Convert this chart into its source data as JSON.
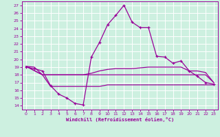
{
  "title": "",
  "xlabel": "Windchill (Refroidissement éolien,°C)",
  "background_color": "#cdf0e0",
  "grid_color": "#ffffff",
  "line_color": "#990099",
  "xlim": [
    -0.5,
    23.5
  ],
  "ylim": [
    13.5,
    27.5
  ],
  "yticks": [
    14,
    15,
    16,
    17,
    18,
    19,
    20,
    21,
    22,
    23,
    24,
    25,
    26,
    27
  ],
  "xticks": [
    0,
    1,
    2,
    3,
    4,
    5,
    6,
    7,
    8,
    9,
    10,
    11,
    12,
    13,
    14,
    15,
    16,
    17,
    18,
    19,
    20,
    21,
    22,
    23
  ],
  "line1_x": [
    0,
    1,
    2,
    3,
    4,
    5,
    6,
    7,
    8,
    9,
    10,
    11,
    12,
    13,
    14,
    15,
    16,
    17,
    18,
    19,
    20,
    21,
    22,
    23
  ],
  "line1_y": [
    19.0,
    18.8,
    18.5,
    16.6,
    15.5,
    15.0,
    14.3,
    14.1,
    20.3,
    22.2,
    24.5,
    25.7,
    27.0,
    24.8,
    24.1,
    24.1,
    20.4,
    20.3,
    19.5,
    19.8,
    18.5,
    17.8,
    17.0,
    16.8
  ],
  "line2_x": [
    0,
    1,
    2,
    3,
    4,
    5,
    6,
    7,
    8,
    9,
    10,
    11,
    12,
    13,
    14,
    15,
    16,
    17,
    18,
    19,
    20,
    21,
    22,
    23
  ],
  "line2_y": [
    19.1,
    19.0,
    18.0,
    18.0,
    18.0,
    18.0,
    18.0,
    18.0,
    18.2,
    18.5,
    18.7,
    18.8,
    18.8,
    18.8,
    18.9,
    19.0,
    19.0,
    19.0,
    19.0,
    19.0,
    18.5,
    18.5,
    18.3,
    17.0
  ],
  "line3_x": [
    0,
    2,
    3,
    4,
    5,
    6,
    7,
    8,
    9,
    10,
    11,
    12,
    13,
    14,
    15,
    16,
    17,
    18,
    19,
    20,
    21,
    22,
    23
  ],
  "line3_y": [
    19.1,
    18.0,
    18.0,
    18.0,
    18.0,
    18.0,
    18.0,
    18.0,
    18.0,
    18.0,
    18.0,
    18.0,
    18.0,
    18.0,
    18.0,
    18.0,
    18.0,
    18.0,
    18.0,
    18.0,
    18.0,
    18.0,
    17.0
  ],
  "line4_x": [
    0,
    2,
    3,
    4,
    5,
    6,
    7,
    8,
    9,
    10,
    11,
    12,
    13,
    14,
    15,
    16,
    17,
    18,
    19,
    20,
    21,
    22,
    23
  ],
  "line4_y": [
    19.1,
    18.0,
    16.5,
    16.5,
    16.5,
    16.5,
    16.5,
    16.5,
    16.5,
    16.7,
    16.7,
    16.7,
    16.7,
    16.7,
    16.7,
    16.7,
    16.7,
    16.7,
    16.7,
    16.7,
    16.7,
    16.7,
    16.7
  ]
}
